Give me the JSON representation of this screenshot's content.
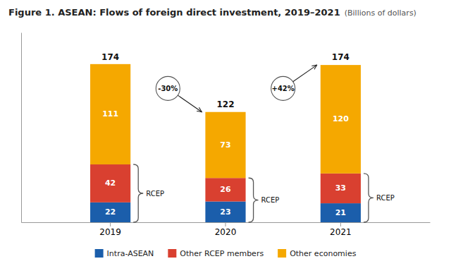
{
  "chart_data": {
    "type": "bar",
    "stacked": true,
    "data_labels": true,
    "title": "Figure 1. ASEAN: Flows of foreign direct investment, 2019–2021",
    "subtitle": "(Billions of dollars)",
    "categories": [
      "2019",
      "2020",
      "2021"
    ],
    "series": [
      {
        "name": "Intra-ASEAN",
        "color": "#1B5EAB",
        "values": [
          22,
          23,
          21
        ]
      },
      {
        "name": "Other RCEP members",
        "color": "#D94030",
        "values": [
          42,
          26,
          33
        ]
      },
      {
        "name": "Other economies",
        "color": "#F5A800",
        "values": [
          111,
          73,
          120
        ]
      }
    ],
    "totals": [
      174,
      122,
      174
    ],
    "bracket_label": "RCEP",
    "changes": [
      "-30%",
      "+42%"
    ],
    "ylim": [
      0,
      210
    ],
    "tick_labels": "x",
    "grid": false,
    "legend": "bottom"
  }
}
